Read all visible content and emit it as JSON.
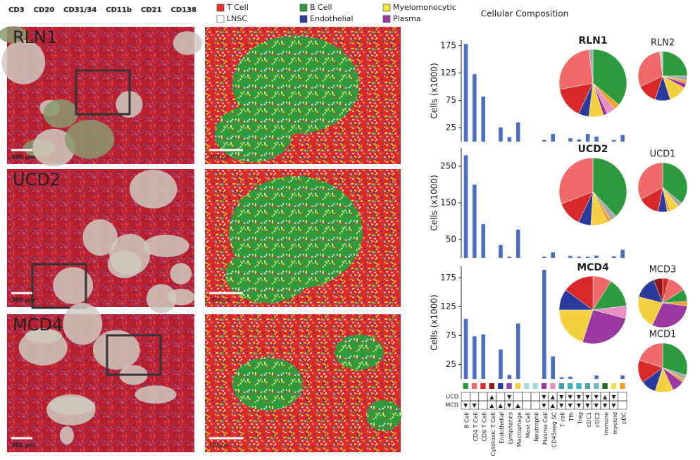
{
  "channel_legend": [
    {
      "text": "CD3",
      "color": "#e8383a"
    },
    {
      "text": "CD20",
      "color": "#3a9a48"
    },
    {
      "text": "CD31/34",
      "color": "#3a48b0"
    },
    {
      "text": "CD11b",
      "color": "#f0e050"
    },
    {
      "text": "CD21",
      "color": "#c8c8c8"
    },
    {
      "text": "CD138",
      "color": "#c050c0"
    }
  ],
  "celltype_legend": [
    {
      "name": "T Cell",
      "color": "#e8302a"
    },
    {
      "name": "B Cell",
      "color": "#2e9a3e"
    },
    {
      "name": "Myelomonocytic",
      "color": "#f5e63a"
    },
    {
      "name": "LNSC",
      "color": "#ffffff"
    },
    {
      "name": "Endothelial",
      "color": "#2a3a9a"
    },
    {
      "name": "Plasma",
      "color": "#9a3aa0"
    }
  ],
  "images": [
    {
      "label": "RLN1",
      "scale": "300 µm"
    },
    {
      "label": "UCD2",
      "scale": "300 µm"
    },
    {
      "label": "MCD4",
      "scale": "300 µm"
    }
  ],
  "maps": [
    {
      "scale": "200 µm"
    },
    {
      "scale": "200 µm"
    },
    {
      "scale": "100µm"
    }
  ],
  "composition": {
    "title": "Cellular Composition",
    "categories": [
      "B Cell",
      "CD4 T Cell",
      "CD8 T Cell",
      "Cytotoxic T Cell",
      "Endothelial",
      "Lymphatics",
      "Macrophage",
      "Mast Cell",
      "Neutrophil",
      "Plasma Cell",
      "CD45neg SC",
      "T cell",
      "Tfh",
      "Treg",
      "cDC1",
      "cDC2",
      "Immune",
      "myeloid",
      "pDC"
    ],
    "category_colors": [
      "#2e9a3e",
      "#f06a6a",
      "#d82828",
      "#901818",
      "#2a3a9a",
      "#8a4aa8",
      "#f5d040",
      "#a8dcd8",
      "#a8dcd8",
      "#9a3aa0",
      "#e890c0",
      "#40a0a8",
      "#40b0b8",
      "#40b8c0",
      "#50a0a8",
      "#70b8c0",
      "#2a6a2a",
      "#f0e060",
      "#f0a030"
    ],
    "marker_rows": [
      "UCD",
      "MCD"
    ],
    "markers": [
      [
        null,
        null,
        null,
        "▲",
        null,
        "▼",
        null,
        null,
        null,
        "▼",
        "▲",
        "▼",
        "▼",
        "▼",
        "▼",
        "▼",
        "▲",
        "▼",
        null
      ],
      [
        "▼",
        "▼",
        null,
        "▲",
        "▲",
        "▼",
        "▲",
        null,
        null,
        "▼",
        "▲",
        "▼",
        "▼",
        "▼",
        "▼",
        "▼",
        "▼",
        "▼",
        null
      ]
    ]
  },
  "chart_data": [
    {
      "type": "bar",
      "y_label": "Cells (x1000)",
      "color": "#4a6ec0",
      "ylim": [
        0,
        185
      ],
      "yticks": [
        25,
        75,
        125,
        175
      ],
      "values": [
        178,
        123,
        82,
        0,
        26,
        8,
        35,
        0,
        0,
        3,
        14,
        0,
        6,
        4,
        14,
        9,
        0,
        3,
        12
      ]
    },
    {
      "type": "bar",
      "y_label": "Cells (x1000)",
      "color": "#4a6ec0",
      "ylim": [
        0,
        300
      ],
      "yticks": [
        50,
        150,
        250
      ],
      "values": [
        280,
        200,
        92,
        0,
        35,
        3,
        77,
        0,
        0,
        3,
        15,
        0,
        5,
        3,
        3,
        6,
        0,
        4,
        22
      ]
    },
    {
      "type": "bar",
      "y_label": "Cells (x1000)",
      "color": "#4a6ec0",
      "ylim": [
        0,
        195
      ],
      "yticks": [
        25,
        75,
        125,
        175
      ],
      "values": [
        104,
        74,
        77,
        0,
        51,
        7,
        96,
        0,
        0,
        189,
        39,
        3,
        4,
        0,
        0,
        6,
        0,
        0,
        6
      ]
    },
    {
      "type": "pie",
      "title": "RLN1",
      "values": [
        36,
        3,
        4,
        2,
        7,
        5,
        15,
        26,
        2
      ],
      "colors": [
        "#2e9a3e",
        "#f0a030",
        "#e890c0",
        "#9a3aa0",
        "#f5d040",
        "#2a3a9a",
        "#d82828",
        "#f06a6a",
        "#a8a8a8"
      ]
    },
    {
      "type": "pie",
      "title": "RLN2",
      "values": [
        25,
        3,
        2,
        3,
        12,
        10,
        13,
        30,
        2
      ],
      "colors": [
        "#2e9a3e",
        "#a8a8a8",
        "#f0a030",
        "#9a3aa0",
        "#f5d040",
        "#2a3a9a",
        "#d82828",
        "#f06a6a",
        "#c8c8c8"
      ]
    },
    {
      "type": "pie",
      "title": "UCD2",
      "values": [
        38,
        3,
        2,
        8,
        6,
        12,
        31
      ],
      "colors": [
        "#2e9a3e",
        "#a8a8a8",
        "#f0a030",
        "#f5d040",
        "#2a3a9a",
        "#d82828",
        "#f06a6a"
      ]
    },
    {
      "type": "pie",
      "title": "UCD1",
      "values": [
        36,
        3,
        6,
        2,
        6,
        14,
        33
      ],
      "colors": [
        "#2e9a3e",
        "#a8a8a8",
        "#f5d040",
        "#f0a030",
        "#2a3a9a",
        "#d82828",
        "#f06a6a"
      ]
    },
    {
      "type": "pie",
      "title": "MCD4",
      "values": [
        9,
        14,
        6,
        26,
        20,
        10,
        15
      ],
      "colors": [
        "#f06a6a",
        "#2e9a3e",
        "#e890c0",
        "#9a3aa0",
        "#f5d040",
        "#2a3a9a",
        "#d82828"
      ]
    },
    {
      "type": "pie",
      "title": "MCD3",
      "values": [
        4,
        12,
        8,
        3,
        30,
        22,
        15,
        6
      ],
      "colors": [
        "#d82828",
        "#f06a6a",
        "#2e9a3e",
        "#f0a030",
        "#9a3aa0",
        "#f5d040",
        "#2a3a9a",
        "#901818"
      ]
    },
    {
      "type": "pie",
      "title": "MCD1",
      "values": [
        30,
        3,
        2,
        8,
        12,
        10,
        15,
        20
      ],
      "colors": [
        "#2e9a3e",
        "#a8a8a8",
        "#f0a030",
        "#9a3aa0",
        "#f5d040",
        "#2a3a9a",
        "#d82828",
        "#f06a6a"
      ]
    }
  ]
}
